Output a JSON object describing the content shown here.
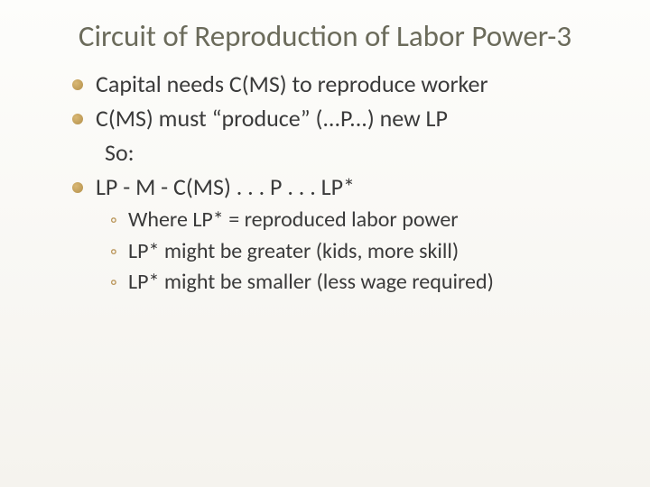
{
  "slide": {
    "title": "Circuit of Reproduction of Labor Power-3",
    "title_color": "#6b6b5b",
    "title_fontsize": 33,
    "bullet_color": "#b38f4a",
    "bullet_highlight": "#d9b875",
    "sub_marker_color": "#b89254",
    "text_color": "#3a3a3a",
    "body_fontsize": 26,
    "sub_fontsize": 24,
    "background_top": "#fdfdfb",
    "background_bottom": "#f5f3ee",
    "bullets": [
      "Capital needs C(MS) to reproduce worker",
      "C(MS) must “produce” (...P...) new LP",
      "LP - M - C(MS) . . . P . . . LP*"
    ],
    "so_label": "So:",
    "subs": [
      "Where LP* = reproduced labor power",
      "LP* might be greater (kids, more skill)",
      "LP* might be smaller (less wage required)"
    ]
  }
}
